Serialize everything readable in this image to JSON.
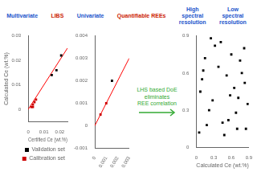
{
  "chart_data": [
    {
      "type": "diagram",
      "annotations": [
        {
          "text": "Multivariate",
          "color": "#2255cc"
        },
        {
          "text": "LIBS",
          "color": "#cc2200"
        },
        {
          "text": "Univariate",
          "color": "#2255cc"
        },
        {
          "text": "Quantifiable REEs",
          "color": "#cc2200"
        },
        {
          "text": "High\nspectral\nresolution",
          "color": "#2255cc"
        },
        {
          "text": "Low\nspectral\nresolution",
          "color": "#2255cc"
        }
      ]
    },
    {
      "type": "scatter",
      "x_label": "Certified Ce (wt.%)",
      "y_label": "Calculated Ce (wt.%)",
      "xlim": [
        0,
        0.025
      ],
      "xticks": [
        0,
        0.01,
        0.02
      ],
      "ylim": [
        -0.005,
        0.03
      ],
      "yticks": [
        0,
        0.01,
        0.02,
        0.03
      ],
      "grid": false,
      "legend": "lower right",
      "series": [
        {
          "type": "line",
          "color": "#ff0000",
          "x": [
            0,
            0.025
          ],
          "values": [
            0,
            0.025
          ]
        },
        {
          "name": "Validation set",
          "color": "#000000",
          "marker": "square",
          "x": [
            0.021,
            0.018,
            0.015
          ],
          "values": [
            0.022,
            0.016,
            0.014
          ]
        },
        {
          "name": "Calibration set",
          "color": "#cc0000",
          "marker": "square",
          "x": [
            0.002,
            0.003,
            0.004,
            0.005,
            0.003
          ],
          "values": [
            0.001,
            0.002,
            0.003,
            0.004,
            0.001
          ]
        }
      ]
    },
    {
      "type": "scatter",
      "xlim": [
        0,
        0.003
      ],
      "xticks": [
        0,
        0.001,
        0.002,
        0.003
      ],
      "ylim": [
        -0.001,
        0.004
      ],
      "yticks": [
        -0.001,
        0,
        0.001,
        0.002,
        0.003,
        0.004
      ],
      "grid": false,
      "series": [
        {
          "type": "line",
          "color": "#ff0000",
          "x": [
            0,
            0.003
          ],
          "values": [
            0,
            0.003
          ]
        },
        {
          "color": "#000000",
          "marker": "square",
          "x": [
            0.0015
          ],
          "values": [
            0.002
          ]
        },
        {
          "color": "#cc0000",
          "marker": "square",
          "x": [
            0.0005,
            0.001
          ],
          "values": [
            0.0005,
            0.001
          ]
        }
      ]
    },
    {
      "type": "arrow",
      "annotations": [
        {
          "text": "LHS based DoE\neliminates\nREE correlation",
          "color": "#33aa33"
        }
      ]
    },
    {
      "type": "scatter",
      "x_label": "Calculated Ce (wt.%)",
      "xlim": [
        0,
        0.9
      ],
      "xticks": [
        0,
        0.3,
        0.6,
        0.9
      ],
      "ylim": [
        0,
        0.9
      ],
      "yticks": [
        0,
        0.3,
        0.6,
        0.9
      ],
      "grid": false,
      "series": [
        {
          "color": "#000000",
          "marker": "square",
          "x": [
            0.05,
            0.15,
            0.28,
            0.42,
            0.55,
            0.65,
            0.78,
            0.85,
            0.1,
            0.22,
            0.38,
            0.48,
            0.6,
            0.72,
            0.82,
            0.07,
            0.18,
            0.32,
            0.52,
            0.68,
            0.75,
            0.88,
            0.12,
            0.25,
            0.45,
            0.58,
            0.7,
            0.83
          ],
          "values": [
            0.12,
            0.72,
            0.38,
            0.85,
            0.22,
            0.48,
            0.6,
            0.15,
            0.55,
            0.3,
            0.65,
            0.1,
            0.75,
            0.4,
            0.8,
            0.45,
            0.18,
            0.82,
            0.58,
            0.28,
            0.7,
            0.35,
            0.62,
            0.88,
            0.2,
            0.42,
            0.15,
            0.52
          ]
        }
      ]
    }
  ]
}
